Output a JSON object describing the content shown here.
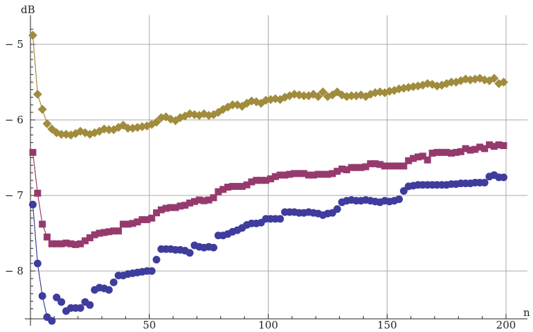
{
  "chart_data": {
    "type": "scatter",
    "title": "",
    "xlabel": "n",
    "ylabel": "dB",
    "xlim": [
      0,
      200
    ],
    "ylim": [
      -8.6,
      -4.75
    ],
    "x_ticks": [
      50,
      100,
      150,
      200
    ],
    "y_ticks": [
      -5,
      -6,
      -7,
      -8
    ],
    "x_tick_labels": [
      "50",
      "100",
      "150",
      "200"
    ],
    "y_tick_labels": [
      "− 5",
      "− 6",
      "− 7",
      "− 8"
    ],
    "grid": true,
    "connected_first_points": 4,
    "series": [
      {
        "marker": "diamond",
        "color": "#a08c3c",
        "x": [
          1,
          3,
          5,
          7,
          9,
          11,
          13,
          15,
          17,
          19,
          21,
          23,
          25,
          27,
          29,
          31,
          33,
          35,
          37,
          39,
          41,
          43,
          45,
          47,
          49,
          51,
          53,
          55,
          57,
          59,
          61,
          63,
          65,
          67,
          69,
          71,
          73,
          75,
          77,
          79,
          81,
          83,
          85,
          87,
          89,
          91,
          93,
          95,
          97,
          99,
          101,
          103,
          105,
          107,
          109,
          111,
          113,
          115,
          117,
          119,
          121,
          123,
          125,
          127,
          129,
          131,
          133,
          135,
          137,
          139,
          141,
          143,
          145,
          147,
          149,
          151,
          153,
          155,
          157,
          159,
          161,
          163,
          165,
          167,
          169,
          171,
          173,
          175,
          177,
          179,
          181,
          183,
          185,
          187,
          189,
          191,
          193,
          195,
          197,
          199
        ],
        "y": [
          -4.88,
          -5.66,
          -5.86,
          -6.05,
          -6.12,
          -6.17,
          -6.19,
          -6.19,
          -6.2,
          -6.18,
          -6.15,
          -6.17,
          -6.19,
          -6.17,
          -6.15,
          -6.12,
          -6.13,
          -6.13,
          -6.1,
          -6.07,
          -6.11,
          -6.11,
          -6.1,
          -6.09,
          -6.08,
          -6.06,
          -6.03,
          -5.97,
          -5.96,
          -5.99,
          -6.01,
          -5.97,
          -5.95,
          -5.92,
          -5.93,
          -5.94,
          -5.92,
          -5.94,
          -5.93,
          -5.9,
          -5.86,
          -5.83,
          -5.8,
          -5.8,
          -5.82,
          -5.78,
          -5.75,
          -5.76,
          -5.78,
          -5.74,
          -5.73,
          -5.72,
          -5.73,
          -5.7,
          -5.68,
          -5.66,
          -5.67,
          -5.68,
          -5.68,
          -5.66,
          -5.69,
          -5.63,
          -5.69,
          -5.67,
          -5.63,
          -5.67,
          -5.69,
          -5.68,
          -5.68,
          -5.67,
          -5.69,
          -5.66,
          -5.64,
          -5.63,
          -5.64,
          -5.62,
          -5.61,
          -5.59,
          -5.58,
          -5.57,
          -5.56,
          -5.55,
          -5.54,
          -5.52,
          -5.53,
          -5.55,
          -5.54,
          -5.52,
          -5.5,
          -5.5,
          -5.48,
          -5.46,
          -5.47,
          -5.46,
          -5.45,
          -5.47,
          -5.48,
          -5.45,
          -5.52,
          -5.5
        ]
      },
      {
        "marker": "square",
        "color": "#963a6e",
        "x": [
          1,
          3,
          5,
          7,
          9,
          11,
          13,
          15,
          17,
          19,
          21,
          23,
          25,
          27,
          29,
          31,
          33,
          35,
          37,
          39,
          41,
          43,
          45,
          47,
          49,
          51,
          53,
          55,
          57,
          59,
          61,
          63,
          65,
          67,
          69,
          71,
          73,
          75,
          77,
          79,
          81,
          83,
          85,
          87,
          89,
          91,
          93,
          95,
          97,
          99,
          101,
          103,
          105,
          107,
          109,
          111,
          113,
          115,
          117,
          119,
          121,
          123,
          125,
          127,
          129,
          131,
          133,
          135,
          137,
          139,
          141,
          143,
          145,
          147,
          149,
          151,
          153,
          155,
          157,
          159,
          161,
          163,
          165,
          167,
          169,
          171,
          173,
          175,
          177,
          179,
          181,
          183,
          185,
          187,
          189,
          191,
          193,
          195,
          197,
          199
        ],
        "y": [
          -6.43,
          -6.97,
          -7.38,
          -7.55,
          -7.64,
          -7.64,
          -7.64,
          -7.63,
          -7.64,
          -7.65,
          -7.64,
          -7.6,
          -7.56,
          -7.52,
          -7.5,
          -7.49,
          -7.48,
          -7.47,
          -7.47,
          -7.38,
          -7.38,
          -7.37,
          -7.35,
          -7.32,
          -7.32,
          -7.3,
          -7.23,
          -7.19,
          -7.17,
          -7.16,
          -7.16,
          -7.14,
          -7.13,
          -7.1,
          -7.08,
          -7.06,
          -7.07,
          -7.06,
          -7.03,
          -6.95,
          -6.92,
          -6.89,
          -6.88,
          -6.88,
          -6.88,
          -6.86,
          -6.82,
          -6.8,
          -6.8,
          -6.8,
          -6.78,
          -6.75,
          -6.73,
          -6.73,
          -6.72,
          -6.71,
          -6.71,
          -6.71,
          -6.73,
          -6.73,
          -6.72,
          -6.72,
          -6.72,
          -6.71,
          -6.68,
          -6.65,
          -6.66,
          -6.63,
          -6.63,
          -6.63,
          -6.62,
          -6.58,
          -6.58,
          -6.59,
          -6.61,
          -6.61,
          -6.61,
          -6.61,
          -6.61,
          -6.54,
          -6.51,
          -6.49,
          -6.48,
          -6.53,
          -6.44,
          -6.43,
          -6.43,
          -6.43,
          -6.44,
          -6.43,
          -6.42,
          -6.38,
          -6.4,
          -6.39,
          -6.36,
          -6.38,
          -6.33,
          -6.35,
          -6.33,
          -6.34
        ]
      },
      {
        "marker": "circle",
        "color": "#3e3c9c",
        "x": [
          1,
          3,
          5,
          7,
          9,
          11,
          13,
          15,
          17,
          19,
          21,
          23,
          25,
          27,
          29,
          31,
          33,
          35,
          37,
          39,
          41,
          43,
          45,
          47,
          49,
          51,
          53,
          55,
          57,
          59,
          61,
          63,
          65,
          67,
          69,
          71,
          73,
          75,
          77,
          79,
          81,
          83,
          85,
          87,
          89,
          91,
          93,
          95,
          97,
          99,
          101,
          103,
          105,
          107,
          109,
          111,
          113,
          115,
          117,
          119,
          121,
          123,
          125,
          127,
          129,
          131,
          133,
          135,
          137,
          139,
          141,
          143,
          145,
          147,
          149,
          151,
          153,
          155,
          157,
          159,
          161,
          163,
          165,
          167,
          169,
          171,
          173,
          175,
          177,
          179,
          181,
          183,
          185,
          187,
          189,
          191,
          193,
          195,
          197,
          199
        ],
        "y": [
          -7.12,
          -7.9,
          -8.33,
          -8.61,
          -8.66,
          -8.35,
          -8.41,
          -8.53,
          -8.49,
          -8.49,
          -8.49,
          -8.41,
          -8.45,
          -8.25,
          -8.22,
          -8.23,
          -8.25,
          -8.15,
          -8.06,
          -8.06,
          -8.04,
          -8.03,
          -8.02,
          -8.01,
          -8.0,
          -8.0,
          -7.85,
          -7.71,
          -7.71,
          -7.71,
          -7.72,
          -7.72,
          -7.73,
          -7.76,
          -7.66,
          -7.68,
          -7.69,
          -7.68,
          -7.69,
          -7.53,
          -7.53,
          -7.51,
          -7.48,
          -7.46,
          -7.43,
          -7.39,
          -7.37,
          -7.37,
          -7.36,
          -7.31,
          -7.31,
          -7.31,
          -7.31,
          -7.22,
          -7.22,
          -7.22,
          -7.23,
          -7.23,
          -7.22,
          -7.23,
          -7.24,
          -7.26,
          -7.24,
          -7.23,
          -7.18,
          -7.09,
          -7.07,
          -7.06,
          -7.07,
          -7.07,
          -7.06,
          -7.07,
          -7.08,
          -7.09,
          -7.07,
          -7.08,
          -7.07,
          -7.05,
          -6.94,
          -6.88,
          -6.87,
          -6.86,
          -6.86,
          -6.86,
          -6.86,
          -6.86,
          -6.86,
          -6.86,
          -6.85,
          -6.85,
          -6.84,
          -6.84,
          -6.84,
          -6.83,
          -6.83,
          -6.83,
          -6.75,
          -6.73,
          -6.76,
          -6.76
        ]
      }
    ]
  }
}
